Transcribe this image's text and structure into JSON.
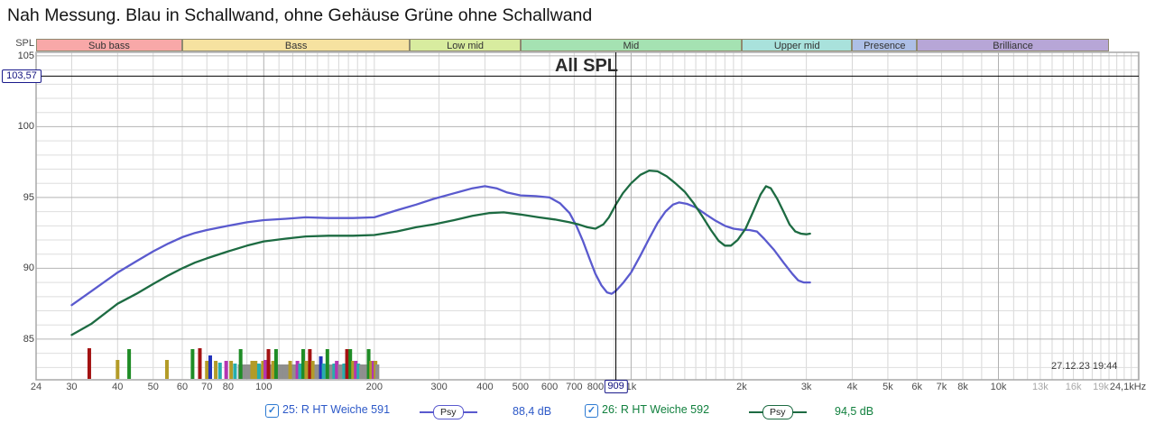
{
  "title": "Nah Messung. Blau in Schallwand, ohne Gehäuse Grüne ohne Schallwand",
  "chart_title": "All SPL",
  "timestamp": "27.12.23 19:44",
  "y_axis": {
    "label": "SPL",
    "ticks": [
      105,
      100,
      95,
      90,
      85
    ]
  },
  "x_axis": {
    "ticks": [
      {
        "label": "24",
        "hz": 24
      },
      {
        "label": "30",
        "hz": 30
      },
      {
        "label": "40",
        "hz": 40
      },
      {
        "label": "50",
        "hz": 50
      },
      {
        "label": "60",
        "hz": 60
      },
      {
        "label": "70",
        "hz": 70
      },
      {
        "label": "80",
        "hz": 80
      },
      {
        "label": "100",
        "hz": 100
      },
      {
        "label": "200",
        "hz": 200
      },
      {
        "label": "300",
        "hz": 300
      },
      {
        "label": "400",
        "hz": 400
      },
      {
        "label": "500",
        "hz": 500
      },
      {
        "label": "600",
        "hz": 600
      },
      {
        "label": "700",
        "hz": 700
      },
      {
        "label": "800",
        "hz": 800
      },
      {
        "label": "1k",
        "hz": 1000
      },
      {
        "label": "2k",
        "hz": 2000
      },
      {
        "label": "3k",
        "hz": 3000
      },
      {
        "label": "4k",
        "hz": 4000
      },
      {
        "label": "5k",
        "hz": 5000
      },
      {
        "label": "6k",
        "hz": 6000
      },
      {
        "label": "7k",
        "hz": 7000
      },
      {
        "label": "8k",
        "hz": 8000
      },
      {
        "label": "10k",
        "hz": 10000
      },
      {
        "label": "13k",
        "hz": 13000,
        "dim": true
      },
      {
        "label": "16k",
        "hz": 16000,
        "dim": true
      },
      {
        "label": "19k",
        "hz": 19000,
        "dim": true
      },
      {
        "label": "24,1kHz",
        "hz": 24100
      }
    ]
  },
  "cursor": {
    "freq_label": "909",
    "freq_hz": 909,
    "spl_label": "103,57",
    "spl_db": 103.57
  },
  "bands": [
    {
      "label": "Sub bass",
      "from_hz": 20,
      "to_hz": 60,
      "color": "#f8a8a8"
    },
    {
      "label": "Bass",
      "from_hz": 60,
      "to_hz": 250,
      "color": "#f6e2a0"
    },
    {
      "label": "Low mid",
      "from_hz": 250,
      "to_hz": 500,
      "color": "#d8ec9f"
    },
    {
      "label": "Mid",
      "from_hz": 500,
      "to_hz": 2000,
      "color": "#a5e2b2"
    },
    {
      "label": "Upper mid",
      "from_hz": 2000,
      "to_hz": 4000,
      "color": "#a9e2dc"
    },
    {
      "label": "Presence",
      "from_hz": 4000,
      "to_hz": 6000,
      "color": "#adbfe6"
    },
    {
      "label": "Brilliance",
      "from_hz": 6000,
      "to_hz": 20000,
      "color": "#b7a6d7"
    }
  ],
  "legend": [
    {
      "label": "25: R HT Weiche 591",
      "checked": true,
      "smoothing": "Psy",
      "value": "88,4 dB",
      "text_color": "#2d59c8",
      "line_color": "#5a5ace"
    },
    {
      "label": "26: R HT Weiche 592",
      "checked": true,
      "smoothing": "Psy",
      "value": "94,5 dB",
      "text_color": "#11803e",
      "line_color": "#1d6b42"
    }
  ],
  "chart_data": {
    "type": "line",
    "title": "All SPL",
    "x_unit": "Hz",
    "y_unit": "dB SPL",
    "x_scale": "log",
    "x_range": [
      24,
      24100
    ],
    "y_range": [
      82.1,
      105.25
    ],
    "grid": true,
    "cursor_readouts": [
      {
        "series": "25: R HT Weiche 591",
        "at_hz": 909,
        "db": 88.4
      },
      {
        "series": "26: R HT Weiche 592",
        "at_hz": 909,
        "db": 94.5
      }
    ],
    "series": [
      {
        "name": "25: R HT Weiche 591",
        "color": "#5a5ace",
        "points": [
          [
            30,
            87.4
          ],
          [
            34,
            88.4
          ],
          [
            40,
            89.7
          ],
          [
            45,
            90.5
          ],
          [
            50,
            91.2
          ],
          [
            55,
            91.75
          ],
          [
            60,
            92.2
          ],
          [
            65,
            92.5
          ],
          [
            70,
            92.7
          ],
          [
            80,
            93.0
          ],
          [
            90,
            93.25
          ],
          [
            100,
            93.4
          ],
          [
            115,
            93.5
          ],
          [
            130,
            93.6
          ],
          [
            150,
            93.55
          ],
          [
            175,
            93.55
          ],
          [
            200,
            93.6
          ],
          [
            230,
            94.1
          ],
          [
            260,
            94.5
          ],
          [
            290,
            94.9
          ],
          [
            330,
            95.3
          ],
          [
            370,
            95.65
          ],
          [
            400,
            95.8
          ],
          [
            430,
            95.65
          ],
          [
            460,
            95.35
          ],
          [
            500,
            95.15
          ],
          [
            550,
            95.1
          ],
          [
            600,
            95.0
          ],
          [
            640,
            94.6
          ],
          [
            680,
            93.9
          ],
          [
            710,
            93.0
          ],
          [
            740,
            91.9
          ],
          [
            770,
            90.7
          ],
          [
            800,
            89.6
          ],
          [
            830,
            88.8
          ],
          [
            860,
            88.3
          ],
          [
            885,
            88.2
          ],
          [
            909,
            88.4
          ],
          [
            950,
            88.95
          ],
          [
            1000,
            89.7
          ],
          [
            1060,
            90.9
          ],
          [
            1120,
            92.1
          ],
          [
            1180,
            93.2
          ],
          [
            1240,
            94.0
          ],
          [
            1300,
            94.5
          ],
          [
            1350,
            94.65
          ],
          [
            1420,
            94.55
          ],
          [
            1500,
            94.3
          ],
          [
            1600,
            93.8
          ],
          [
            1700,
            93.35
          ],
          [
            1800,
            93.0
          ],
          [
            1900,
            92.8
          ],
          [
            2000,
            92.72
          ],
          [
            2100,
            92.7
          ],
          [
            2200,
            92.6
          ],
          [
            2300,
            92.1
          ],
          [
            2450,
            91.3
          ],
          [
            2600,
            90.4
          ],
          [
            2750,
            89.6
          ],
          [
            2850,
            89.15
          ],
          [
            2950,
            89.0
          ],
          [
            3070,
            89.0
          ]
        ]
      },
      {
        "name": "26: R HT Weiche 592",
        "color": "#1d6b42",
        "points": [
          [
            30,
            85.3
          ],
          [
            34,
            86.1
          ],
          [
            40,
            87.5
          ],
          [
            45,
            88.2
          ],
          [
            50,
            88.9
          ],
          [
            55,
            89.5
          ],
          [
            60,
            90.0
          ],
          [
            65,
            90.4
          ],
          [
            70,
            90.7
          ],
          [
            80,
            91.2
          ],
          [
            90,
            91.6
          ],
          [
            100,
            91.9
          ],
          [
            115,
            92.1
          ],
          [
            130,
            92.25
          ],
          [
            150,
            92.3
          ],
          [
            175,
            92.3
          ],
          [
            200,
            92.35
          ],
          [
            230,
            92.6
          ],
          [
            260,
            92.9
          ],
          [
            290,
            93.1
          ],
          [
            330,
            93.4
          ],
          [
            370,
            93.7
          ],
          [
            410,
            93.9
          ],
          [
            450,
            93.95
          ],
          [
            500,
            93.8
          ],
          [
            560,
            93.6
          ],
          [
            620,
            93.45
          ],
          [
            680,
            93.25
          ],
          [
            720,
            93.1
          ],
          [
            760,
            92.9
          ],
          [
            800,
            92.8
          ],
          [
            840,
            93.1
          ],
          [
            870,
            93.6
          ],
          [
            909,
            94.5
          ],
          [
            950,
            95.3
          ],
          [
            1000,
            96.0
          ],
          [
            1060,
            96.6
          ],
          [
            1120,
            96.9
          ],
          [
            1180,
            96.85
          ],
          [
            1250,
            96.5
          ],
          [
            1320,
            96.0
          ],
          [
            1400,
            95.4
          ],
          [
            1480,
            94.6
          ],
          [
            1560,
            93.7
          ],
          [
            1650,
            92.7
          ],
          [
            1730,
            91.95
          ],
          [
            1800,
            91.6
          ],
          [
            1870,
            91.6
          ],
          [
            1950,
            92.0
          ],
          [
            2050,
            92.8
          ],
          [
            2150,
            94.0
          ],
          [
            2250,
            95.2
          ],
          [
            2330,
            95.8
          ],
          [
            2400,
            95.65
          ],
          [
            2500,
            94.9
          ],
          [
            2600,
            94.0
          ],
          [
            2700,
            93.1
          ],
          [
            2800,
            92.6
          ],
          [
            2900,
            92.45
          ],
          [
            3000,
            92.4
          ],
          [
            3070,
            92.45
          ]
        ]
      }
    ],
    "bar_colors": {
      "r": "#a31212",
      "o": "#b39b27",
      "g": "#1f8c26",
      "b": "#2233bb",
      "t": "#26adad",
      "m": "#b335b3",
      "y": "#8f8f8f"
    },
    "gray_base": {
      "from_hz": 86,
      "to_hz": 204,
      "h": 16
    },
    "bars": [
      [
        33.5,
        34,
        "r"
      ],
      [
        40,
        21,
        "o"
      ],
      [
        43,
        33,
        "g"
      ],
      [
        54.5,
        21,
        "o"
      ],
      [
        64,
        33,
        "g"
      ],
      [
        67,
        34,
        "r"
      ],
      [
        70,
        20,
        "o"
      ],
      [
        71.5,
        26,
        "b"
      ],
      [
        74,
        20,
        "o"
      ],
      [
        76,
        18,
        "t"
      ],
      [
        79,
        20,
        "m"
      ],
      [
        81.5,
        20,
        "o"
      ],
      [
        83.5,
        17,
        "t"
      ],
      [
        86.5,
        33,
        "g"
      ],
      [
        90,
        16,
        "y"
      ],
      [
        93,
        20,
        "o"
      ],
      [
        95,
        20,
        "o"
      ],
      [
        97,
        17,
        "t"
      ],
      [
        99.5,
        20,
        "o"
      ],
      [
        101,
        21,
        "m"
      ],
      [
        103,
        33,
        "r"
      ],
      [
        106,
        20,
        "o"
      ],
      [
        108,
        33,
        "g"
      ],
      [
        111,
        16,
        "y"
      ],
      [
        114,
        16,
        "y"
      ],
      [
        118,
        20,
        "o"
      ],
      [
        121,
        16,
        "y"
      ],
      [
        123.5,
        20,
        "m"
      ],
      [
        125.5,
        17,
        "t"
      ],
      [
        128,
        33,
        "g"
      ],
      [
        130.5,
        20,
        "o"
      ],
      [
        133.5,
        33,
        "r"
      ],
      [
        136,
        20,
        "o"
      ],
      [
        139,
        16,
        "y"
      ],
      [
        143,
        25,
        "b"
      ],
      [
        145.5,
        17,
        "t"
      ],
      [
        149,
        33,
        "g"
      ],
      [
        152.5,
        16,
        "y"
      ],
      [
        155.5,
        17,
        "t"
      ],
      [
        158,
        20,
        "m"
      ],
      [
        161,
        16,
        "y"
      ],
      [
        165.5,
        17,
        "t"
      ],
      [
        168.5,
        33,
        "r"
      ],
      [
        172,
        33,
        "g"
      ],
      [
        175,
        20,
        "o"
      ],
      [
        178,
        20,
        "m"
      ],
      [
        181,
        17,
        "t"
      ],
      [
        184,
        16,
        "y"
      ],
      [
        188,
        16,
        "y"
      ],
      [
        193,
        33,
        "g"
      ],
      [
        196,
        20,
        "o"
      ],
      [
        199,
        20,
        "m"
      ],
      [
        201.5,
        20,
        "o"
      ],
      [
        203.5,
        16,
        "y"
      ]
    ]
  }
}
